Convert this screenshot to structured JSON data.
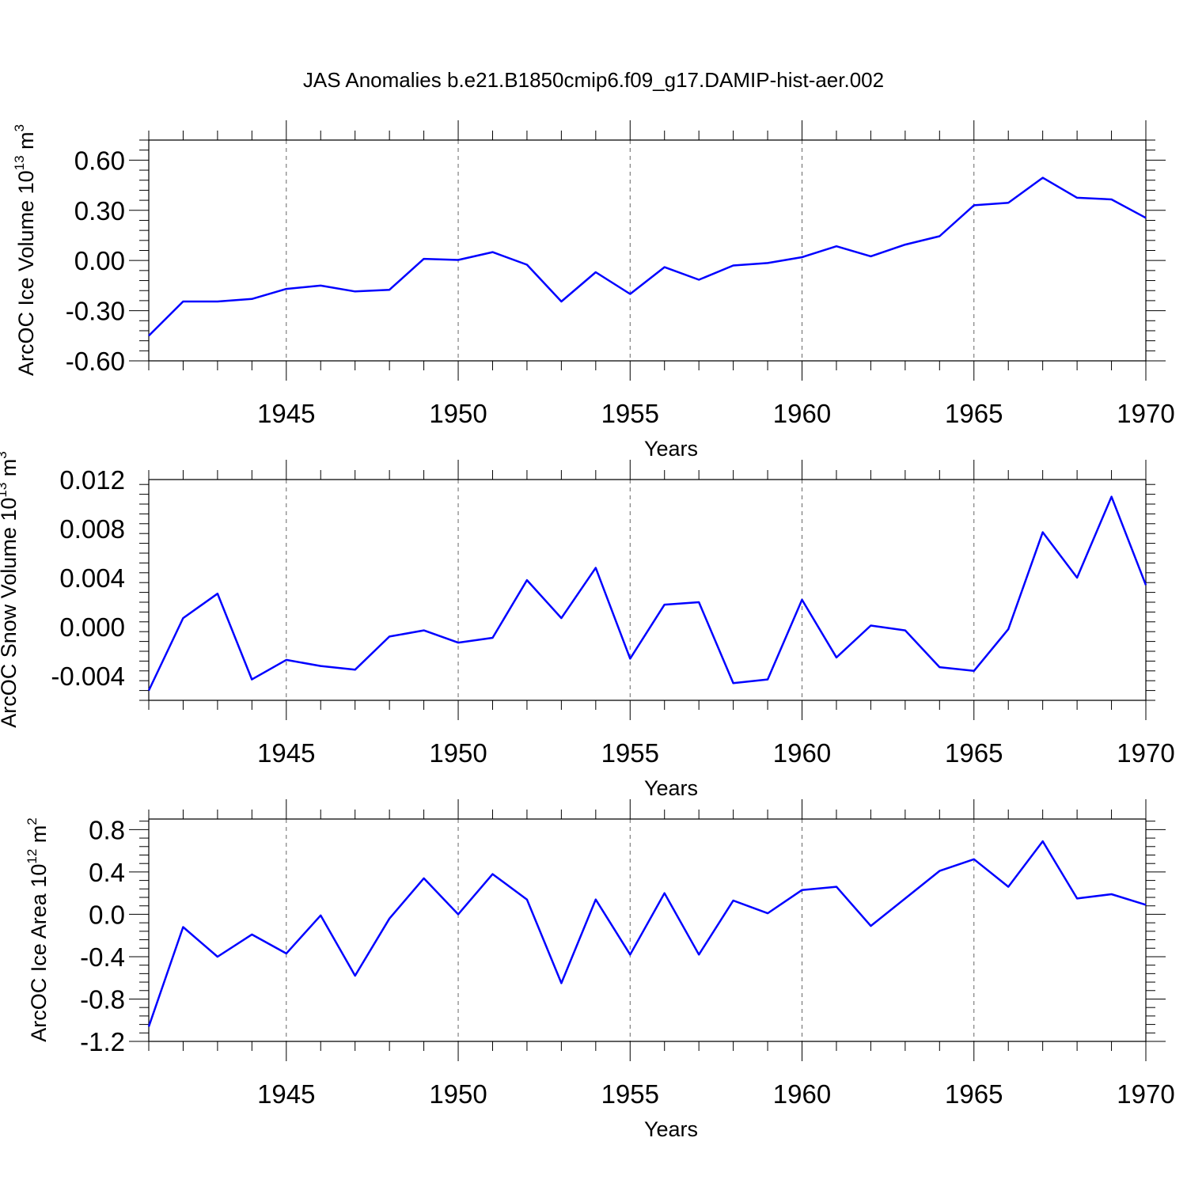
{
  "title": "JAS Anomalies b.e21.B1850cmip6.f09_g17.DAMIP-hist-aer.002",
  "colors": {
    "line": "#0000ff",
    "axis": "#000000",
    "grid": "#666666"
  },
  "chart_data": [
    {
      "type": "line",
      "title": "JAS Anomalies b.e21.B1850cmip6.f09_g17.DAMIP-hist-aer.002",
      "ylabel": {
        "main": "ArcOC Ice Volume 10",
        "exp": "13",
        "unit": " m",
        "unit_exp": "3"
      },
      "xlabel": "Years",
      "xlim": [
        1941,
        1970
      ],
      "ylim": [
        -0.6,
        0.72
      ],
      "yticks": [
        -0.6,
        -0.3,
        0.0,
        0.3,
        0.6
      ],
      "ytick_labels": [
        "-0.60",
        "-0.30",
        "0.00",
        "0.30",
        "0.60"
      ],
      "xticks": [
        1945,
        1950,
        1955,
        1960,
        1965,
        1970
      ],
      "xtick_labels": [
        "1945",
        "1950",
        "1955",
        "1960",
        "1965",
        "1970"
      ],
      "x": [
        1941,
        1942,
        1943,
        1944,
        1945,
        1946,
        1947,
        1948,
        1949,
        1950,
        1951,
        1952,
        1953,
        1954,
        1955,
        1956,
        1957,
        1958,
        1959,
        1960,
        1961,
        1962,
        1963,
        1964,
        1965,
        1966,
        1967,
        1968,
        1969,
        1970
      ],
      "series": [
        {
          "name": "ArcOC Ice Volume",
          "values": [
            -0.45,
            -0.245,
            -0.245,
            -0.23,
            -0.17,
            -0.15,
            -0.185,
            -0.175,
            0.01,
            0.003,
            0.05,
            -0.025,
            -0.245,
            -0.07,
            -0.2,
            -0.04,
            -0.115,
            -0.03,
            -0.015,
            0.02,
            0.085,
            0.025,
            0.095,
            0.145,
            0.33,
            0.345,
            0.495,
            0.375,
            0.365,
            0.255
          ]
        }
      ]
    },
    {
      "type": "line",
      "ylabel": {
        "main": "ArcOC Snow Volume 10",
        "exp": "13",
        "unit": " m",
        "unit_exp": "3"
      },
      "xlabel": "Years",
      "xlim": [
        1941,
        1970
      ],
      "ylim": [
        -0.006,
        0.012
      ],
      "yticks": [
        -0.004,
        0.0,
        0.004,
        0.008,
        0.012
      ],
      "ytick_labels": [
        "-0.004",
        "0.000",
        "0.004",
        "0.008",
        "0.012"
      ],
      "xticks": [
        1945,
        1950,
        1955,
        1960,
        1965,
        1970
      ],
      "xtick_labels": [
        "1945",
        "1950",
        "1955",
        "1960",
        "1965",
        "1970"
      ],
      "x": [
        1941,
        1942,
        1943,
        1944,
        1945,
        1946,
        1947,
        1948,
        1949,
        1950,
        1951,
        1952,
        1953,
        1954,
        1955,
        1956,
        1957,
        1958,
        1959,
        1960,
        1961,
        1962,
        1963,
        1964,
        1965,
        1966,
        1967,
        1968,
        1969,
        1970
      ],
      "series": [
        {
          "name": "ArcOC Snow Volume",
          "values": [
            -0.0052,
            0.0007,
            0.0027,
            -0.0043,
            -0.0027,
            -0.0032,
            -0.0035,
            -0.0008,
            -0.0003,
            -0.0013,
            -0.0009,
            0.0038,
            0.0007,
            0.0048,
            -0.0026,
            0.0018,
            0.002,
            -0.0046,
            -0.0043,
            0.0022,
            -0.0025,
            0.0001,
            -0.0003,
            -0.0033,
            -0.0036,
            -0.0002,
            0.0077,
            0.004,
            0.0106,
            0.0034
          ]
        }
      ]
    },
    {
      "type": "line",
      "ylabel": {
        "main": "ArcOC Ice Area 10",
        "exp": "12",
        "unit": " m",
        "unit_exp": "2"
      },
      "xlabel": "Years",
      "xlim": [
        1941,
        1970
      ],
      "ylim": [
        -1.2,
        0.9
      ],
      "yticks": [
        -1.2,
        -0.8,
        -0.4,
        0.0,
        0.4,
        0.8
      ],
      "ytick_labels": [
        "-1.2",
        "-0.8",
        "-0.4",
        "0.0",
        "0.4",
        "0.8"
      ],
      "xticks": [
        1945,
        1950,
        1955,
        1960,
        1965,
        1970
      ],
      "xtick_labels": [
        "1945",
        "1950",
        "1955",
        "1960",
        "1965",
        "1970"
      ],
      "x": [
        1941,
        1942,
        1943,
        1944,
        1945,
        1946,
        1947,
        1948,
        1949,
        1950,
        1951,
        1952,
        1953,
        1954,
        1955,
        1956,
        1957,
        1958,
        1959,
        1960,
        1961,
        1962,
        1963,
        1964,
        1965,
        1966,
        1967,
        1968,
        1969,
        1970
      ],
      "series": [
        {
          "name": "ArcOC Ice Area",
          "values": [
            -1.06,
            -0.12,
            -0.4,
            -0.19,
            -0.37,
            -0.01,
            -0.58,
            -0.04,
            0.34,
            0.0,
            0.38,
            0.14,
            -0.65,
            0.14,
            -0.38,
            0.2,
            -0.38,
            0.13,
            0.01,
            0.23,
            0.26,
            -0.11,
            0.15,
            0.41,
            0.52,
            0.26,
            0.69,
            0.15,
            0.19,
            0.09
          ]
        }
      ]
    }
  ]
}
